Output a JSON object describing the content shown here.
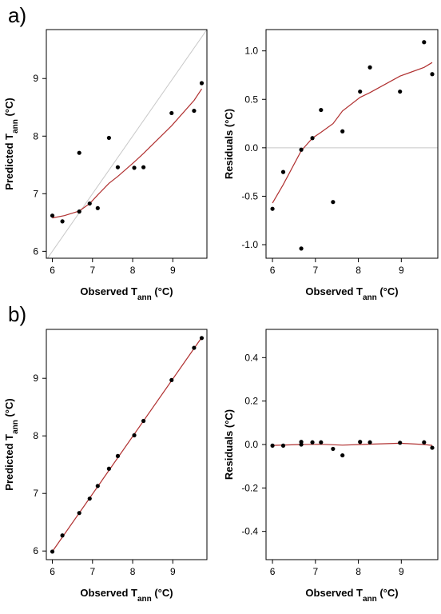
{
  "panels": [
    "a)",
    "b)"
  ],
  "chart_data": [
    {
      "id": "a-predicted",
      "type": "scatter",
      "xlabel": "Observed T_ann (°C)",
      "ylabel": "Predicted T_ann (°C)",
      "xlim": [
        5.85,
        9.85
      ],
      "ylim": [
        5.88,
        9.85
      ],
      "xticks": [
        6,
        7,
        8,
        9
      ],
      "yticks": [
        6,
        7,
        8,
        9
      ],
      "points": [
        [
          6.0,
          6.62
        ],
        [
          6.25,
          6.52
        ],
        [
          6.67,
          7.71
        ],
        [
          6.67,
          6.69
        ],
        [
          6.93,
          6.83
        ],
        [
          7.13,
          6.75
        ],
        [
          7.41,
          7.97
        ],
        [
          7.63,
          7.46
        ],
        [
          8.04,
          7.45
        ],
        [
          8.27,
          7.46
        ],
        [
          8.97,
          8.4
        ],
        [
          9.53,
          8.44
        ],
        [
          9.72,
          8.92
        ]
      ],
      "fit_line": [
        [
          6.0,
          6.58
        ],
        [
          6.3,
          6.62
        ],
        [
          6.67,
          6.7
        ],
        [
          6.93,
          6.83
        ],
        [
          7.13,
          6.98
        ],
        [
          7.41,
          7.18
        ],
        [
          7.63,
          7.3
        ],
        [
          8.04,
          7.55
        ],
        [
          8.27,
          7.7
        ],
        [
          8.97,
          8.18
        ],
        [
          9.53,
          8.62
        ],
        [
          9.72,
          8.82
        ]
      ],
      "reference": "1:1",
      "colors": {
        "fit": "#b03030",
        "points": "#000000",
        "reference": "#c8c8c8"
      }
    },
    {
      "id": "a-residuals",
      "type": "scatter",
      "xlabel": "Observed T_ann (°C)",
      "ylabel": "Residuals (°C)",
      "xlim": [
        5.85,
        9.85
      ],
      "ylim": [
        -1.14,
        1.22
      ],
      "xticks": [
        6,
        7,
        8,
        9
      ],
      "yticks": [
        1.0,
        0.5,
        0.0,
        -0.5,
        -1.0
      ],
      "ytick_labels": [
        "1.0",
        "0.5",
        "0.0",
        "-0.5",
        "-1.0"
      ],
      "points": [
        [
          6.0,
          -0.63
        ],
        [
          6.25,
          -0.25
        ],
        [
          6.67,
          -1.04
        ],
        [
          6.67,
          -0.02
        ],
        [
          6.93,
          0.1
        ],
        [
          7.13,
          0.39
        ],
        [
          7.41,
          -0.56
        ],
        [
          7.63,
          0.17
        ],
        [
          8.04,
          0.58
        ],
        [
          8.27,
          0.83
        ],
        [
          8.97,
          0.58
        ],
        [
          9.53,
          1.09
        ],
        [
          9.72,
          0.76
        ]
      ],
      "fit_line": [
        [
          6.0,
          -0.57
        ],
        [
          6.25,
          -0.38
        ],
        [
          6.67,
          -0.03
        ],
        [
          6.93,
          0.1
        ],
        [
          7.13,
          0.16
        ],
        [
          7.41,
          0.25
        ],
        [
          7.63,
          0.38
        ],
        [
          8.04,
          0.52
        ],
        [
          8.27,
          0.57
        ],
        [
          8.97,
          0.74
        ],
        [
          9.53,
          0.83
        ],
        [
          9.72,
          0.88
        ]
      ],
      "reference": "zero",
      "colors": {
        "fit": "#b03030",
        "points": "#000000",
        "reference": "#c8c8c8"
      }
    },
    {
      "id": "b-predicted",
      "type": "scatter",
      "xlabel": "Observed T_ann (°C)",
      "ylabel": "Predicted T_ann (°C)",
      "xlim": [
        5.85,
        9.85
      ],
      "ylim": [
        5.85,
        9.85
      ],
      "xticks": [
        6,
        7,
        8,
        9
      ],
      "yticks": [
        6,
        7,
        8,
        9
      ],
      "points": [
        [
          6.0,
          5.99
        ],
        [
          6.25,
          6.27
        ],
        [
          6.67,
          6.66
        ],
        [
          6.93,
          6.91
        ],
        [
          7.13,
          7.13
        ],
        [
          7.41,
          7.43
        ],
        [
          7.63,
          7.65
        ],
        [
          8.04,
          8.01
        ],
        [
          8.27,
          8.26
        ],
        [
          8.97,
          8.97
        ],
        [
          9.53,
          9.53
        ],
        [
          9.72,
          9.7
        ]
      ],
      "fit_line": [
        [
          6.0,
          5.99
        ],
        [
          9.72,
          9.71
        ]
      ],
      "colors": {
        "fit": "#b03030",
        "points": "#000000"
      }
    },
    {
      "id": "b-residuals",
      "type": "scatter",
      "xlabel": "Observed T_ann (°C)",
      "ylabel": "Residuals (°C)",
      "xlim": [
        5.85,
        9.85
      ],
      "ylim": [
        -0.53,
        0.53
      ],
      "xticks": [
        6,
        7,
        8,
        9
      ],
      "yticks": [
        0.4,
        0.2,
        0.0,
        -0.2,
        -0.4
      ],
      "ytick_labels": [
        "0.4",
        "0.2",
        "0.0",
        "-0.2",
        "-0.4"
      ],
      "points": [
        [
          6.0,
          -0.005
        ],
        [
          6.25,
          -0.005
        ],
        [
          6.67,
          0.0
        ],
        [
          6.67,
          0.012
        ],
        [
          6.93,
          0.01
        ],
        [
          7.13,
          0.01
        ],
        [
          7.41,
          -0.02
        ],
        [
          7.63,
          -0.05
        ],
        [
          8.04,
          0.012
        ],
        [
          8.27,
          0.01
        ],
        [
          8.97,
          0.008
        ],
        [
          9.53,
          0.01
        ],
        [
          9.72,
          -0.015
        ]
      ],
      "fit_line": [
        [
          6.0,
          -0.004
        ],
        [
          6.67,
          0.0
        ],
        [
          7.13,
          0.001
        ],
        [
          7.63,
          -0.003
        ],
        [
          8.04,
          0.0
        ],
        [
          8.97,
          0.006
        ],
        [
          9.53,
          0.0
        ],
        [
          9.72,
          -0.004
        ]
      ],
      "colors": {
        "fit": "#b03030",
        "points": "#000000"
      }
    }
  ]
}
